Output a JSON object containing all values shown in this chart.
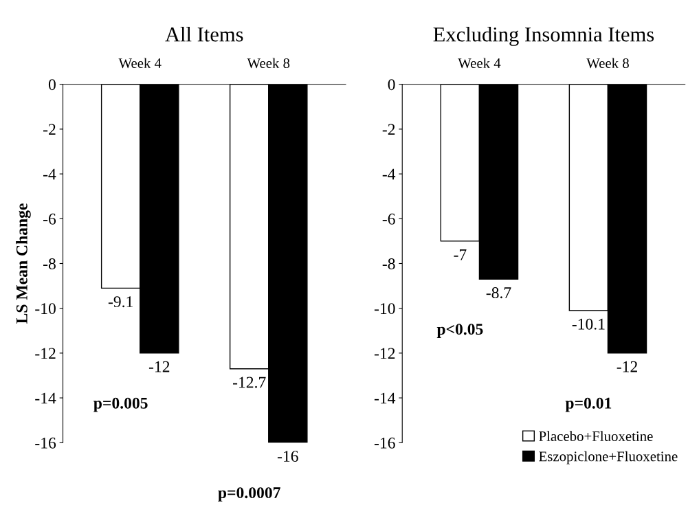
{
  "chart_data": [
    {
      "type": "bar",
      "title": "All Items",
      "ylabel": "LS Mean Change",
      "categories": [
        "Week 4",
        "Week 8"
      ],
      "ylim": [
        -16,
        0
      ],
      "yticks": [
        0,
        -2,
        -4,
        -6,
        -8,
        -10,
        -12,
        -14,
        -16
      ],
      "grid": false,
      "legend": false,
      "data_labels": true,
      "series": [
        {
          "color": "#ffffff",
          "values": [
            -9.1,
            -12.7
          ]
        },
        {
          "color": "#000000",
          "values": [
            -12,
            -16
          ]
        }
      ],
      "annotations": [
        "p=0.005",
        "p=0.0007"
      ]
    },
    {
      "type": "bar",
      "title": "Excluding Insomnia Items",
      "categories": [
        "Week 4",
        "Week 8"
      ],
      "ylim": [
        -16,
        0
      ],
      "yticks": [
        0,
        -2,
        -4,
        -6,
        -8,
        -10,
        -12,
        -14,
        -16
      ],
      "grid": false,
      "legend": "bottom right",
      "data_labels": true,
      "series": [
        {
          "name": "Placebo+Fluoxetine",
          "color": "#ffffff",
          "values": [
            -7,
            -10.1
          ]
        },
        {
          "name": "Eszopiclone+Fluoxetine",
          "color": "#000000",
          "values": [
            -8.7,
            -12
          ]
        }
      ],
      "annotations": [
        "p<0.05",
        "p=0.01"
      ]
    }
  ]
}
